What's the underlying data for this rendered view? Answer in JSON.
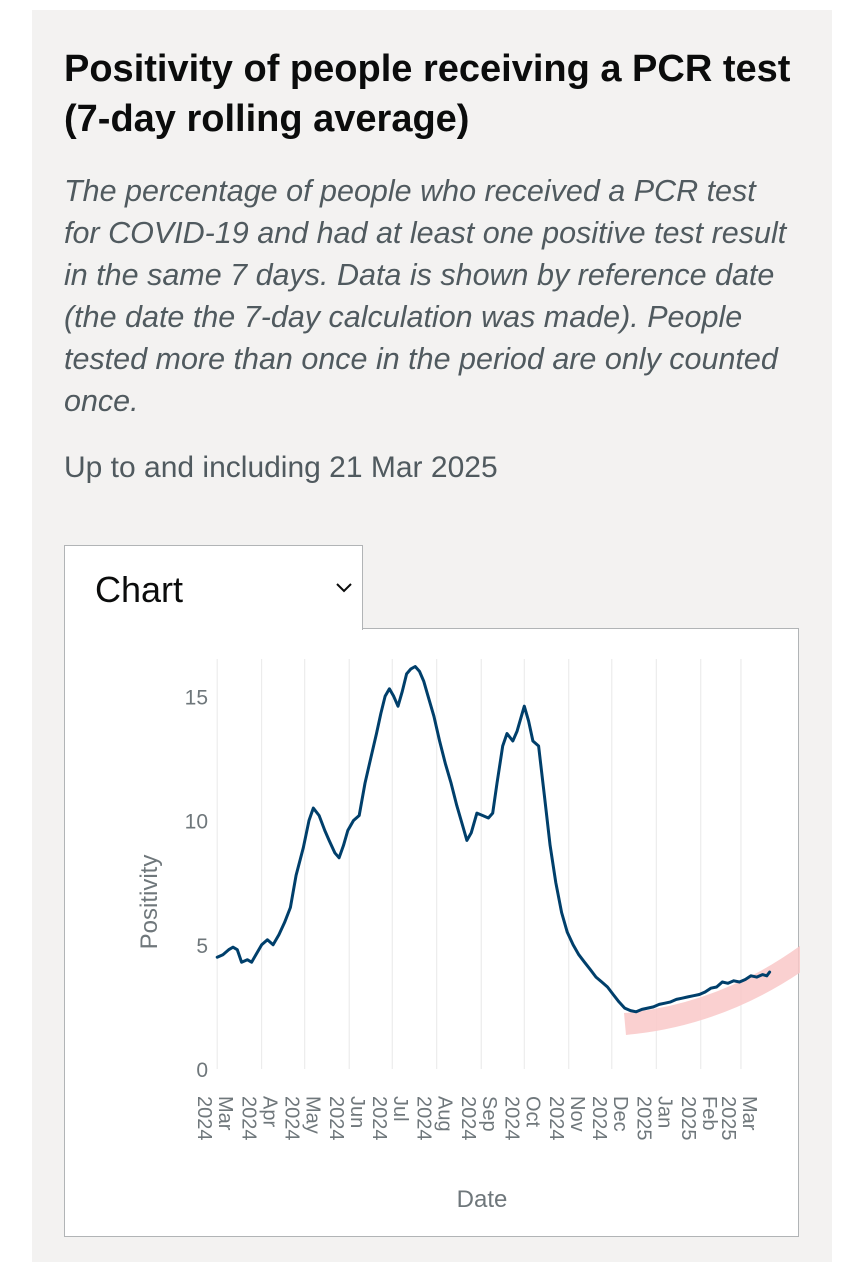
{
  "header": {
    "title": "Positivity of people receiving a PCR test (7-day rolling average)",
    "subtitle": "The percentage of people who received a PCR test for COVID-19 and had at least one positive test result in the same 7 days. Data is shown by reference date (the date the 7-day calculation was made). People tested more than once in the period are only counted once.",
    "date_note": "Up to and including 21 Mar 2025"
  },
  "view_selector": {
    "label": "Chart",
    "icon": "chevron-down-icon"
  },
  "colors": {
    "line": "#003f6b",
    "highlight": "#f9c8c8",
    "grid": "#e8e8e8",
    "axis_text": "#6f777b"
  },
  "chart_data": {
    "type": "line",
    "title": "",
    "xlabel": "Date",
    "ylabel": "Positivity",
    "ylim": [
      0,
      16.5
    ],
    "yticks": [
      0,
      5,
      10,
      15
    ],
    "xlim": [
      "2024-02-25",
      "2025-03-31"
    ],
    "grid": "vertical",
    "x_ticks": [
      {
        "date": "2024-03-01",
        "lines": [
          "Mar",
          "2024"
        ]
      },
      {
        "date": "2024-04-01",
        "lines": [
          "Apr",
          "2024"
        ]
      },
      {
        "date": "2024-05-01",
        "lines": [
          "May",
          "2024"
        ]
      },
      {
        "date": "2024-06-01",
        "lines": [
          "Jun",
          "2024"
        ]
      },
      {
        "date": "2024-07-01",
        "lines": [
          "Jul",
          "2024"
        ]
      },
      {
        "date": "2024-08-01",
        "lines": [
          "Aug",
          "2024"
        ]
      },
      {
        "date": "2024-09-01",
        "lines": [
          "Sep",
          "2024"
        ]
      },
      {
        "date": "2024-10-01",
        "lines": [
          "Oct",
          "2024"
        ]
      },
      {
        "date": "2024-11-01",
        "lines": [
          "Nov",
          "2024"
        ]
      },
      {
        "date": "2024-12-01",
        "lines": [
          "Dec",
          "2024"
        ]
      },
      {
        "date": "2025-01-01",
        "lines": [
          "Jan",
          "2025"
        ]
      },
      {
        "date": "2025-02-01",
        "lines": [
          "Feb",
          "2025"
        ]
      },
      {
        "date": "2025-03-01",
        "lines": [
          "Mar",
          "2025"
        ]
      }
    ],
    "series": [
      {
        "values": [
          [
            "2024-03-01",
            4.5
          ],
          [
            "2024-03-05",
            4.6
          ],
          [
            "2024-03-09",
            4.8
          ],
          [
            "2024-03-12",
            4.9
          ],
          [
            "2024-03-15",
            4.8
          ],
          [
            "2024-03-18",
            4.3
          ],
          [
            "2024-03-22",
            4.4
          ],
          [
            "2024-03-25",
            4.3
          ],
          [
            "2024-03-28",
            4.6
          ],
          [
            "2024-04-01",
            5.0
          ],
          [
            "2024-04-05",
            5.2
          ],
          [
            "2024-04-09",
            5.0
          ],
          [
            "2024-04-13",
            5.4
          ],
          [
            "2024-04-17",
            5.9
          ],
          [
            "2024-04-21",
            6.5
          ],
          [
            "2024-04-25",
            7.8
          ],
          [
            "2024-04-30",
            8.9
          ],
          [
            "2024-05-04",
            10.0
          ],
          [
            "2024-05-07",
            10.5
          ],
          [
            "2024-05-11",
            10.2
          ],
          [
            "2024-05-15",
            9.6
          ],
          [
            "2024-05-18",
            9.2
          ],
          [
            "2024-05-22",
            8.7
          ],
          [
            "2024-05-25",
            8.5
          ],
          [
            "2024-05-28",
            9.0
          ],
          [
            "2024-05-31",
            9.6
          ],
          [
            "2024-06-04",
            10.0
          ],
          [
            "2024-06-08",
            10.2
          ],
          [
            "2024-06-12",
            11.5
          ],
          [
            "2024-06-16",
            12.5
          ],
          [
            "2024-06-20",
            13.5
          ],
          [
            "2024-06-23",
            14.3
          ],
          [
            "2024-06-26",
            15.0
          ],
          [
            "2024-06-29",
            15.3
          ],
          [
            "2024-07-02",
            15.0
          ],
          [
            "2024-07-05",
            14.6
          ],
          [
            "2024-07-08",
            15.2
          ],
          [
            "2024-07-11",
            15.9
          ],
          [
            "2024-07-14",
            16.1
          ],
          [
            "2024-07-17",
            16.2
          ],
          [
            "2024-07-20",
            16.0
          ],
          [
            "2024-07-23",
            15.6
          ],
          [
            "2024-07-26",
            15.0
          ],
          [
            "2024-07-30",
            14.2
          ],
          [
            "2024-08-03",
            13.2
          ],
          [
            "2024-08-07",
            12.3
          ],
          [
            "2024-08-11",
            11.5
          ],
          [
            "2024-08-15",
            10.6
          ],
          [
            "2024-08-19",
            9.8
          ],
          [
            "2024-08-22",
            9.2
          ],
          [
            "2024-08-25",
            9.5
          ],
          [
            "2024-08-29",
            10.3
          ],
          [
            "2024-09-02",
            10.2
          ],
          [
            "2024-09-06",
            10.1
          ],
          [
            "2024-09-09",
            10.3
          ],
          [
            "2024-09-12",
            11.5
          ],
          [
            "2024-09-16",
            13.0
          ],
          [
            "2024-09-19",
            13.5
          ],
          [
            "2024-09-23",
            13.2
          ],
          [
            "2024-09-26",
            13.6
          ],
          [
            "2024-09-29",
            14.2
          ],
          [
            "2024-10-01",
            14.6
          ],
          [
            "2024-10-04",
            14.0
          ],
          [
            "2024-10-07",
            13.2
          ],
          [
            "2024-10-11",
            13.0
          ],
          [
            "2024-10-15",
            11.0
          ],
          [
            "2024-10-19",
            9.0
          ],
          [
            "2024-10-23",
            7.5
          ],
          [
            "2024-10-27",
            6.3
          ],
          [
            "2024-10-31",
            5.5
          ],
          [
            "2024-11-04",
            5.0
          ],
          [
            "2024-11-08",
            4.6
          ],
          [
            "2024-11-12",
            4.3
          ],
          [
            "2024-11-16",
            4.0
          ],
          [
            "2024-11-20",
            3.7
          ],
          [
            "2024-11-24",
            3.5
          ],
          [
            "2024-11-28",
            3.3
          ],
          [
            "2024-12-02",
            3.0
          ],
          [
            "2024-12-06",
            2.7
          ],
          [
            "2024-12-10",
            2.45
          ],
          [
            "2024-12-14",
            2.35
          ],
          [
            "2024-12-18",
            2.3
          ],
          [
            "2024-12-22",
            2.4
          ],
          [
            "2024-12-26",
            2.45
          ],
          [
            "2024-12-30",
            2.5
          ],
          [
            "2025-01-03",
            2.6
          ],
          [
            "2025-01-07",
            2.65
          ],
          [
            "2025-01-11",
            2.7
          ],
          [
            "2025-01-15",
            2.8
          ],
          [
            "2025-01-19",
            2.85
          ],
          [
            "2025-01-23",
            2.9
          ],
          [
            "2025-01-27",
            2.95
          ],
          [
            "2025-01-31",
            3.0
          ],
          [
            "2025-02-04",
            3.1
          ],
          [
            "2025-02-08",
            3.25
          ],
          [
            "2025-02-12",
            3.3
          ],
          [
            "2025-02-16",
            3.5
          ],
          [
            "2025-02-20",
            3.45
          ],
          [
            "2025-02-24",
            3.55
          ],
          [
            "2025-02-28",
            3.5
          ],
          [
            "2025-03-04",
            3.6
          ],
          [
            "2025-03-08",
            3.75
          ],
          [
            "2025-03-12",
            3.7
          ],
          [
            "2025-03-16",
            3.8
          ],
          [
            "2025-03-19",
            3.75
          ],
          [
            "2025-03-21",
            3.9
          ]
        ]
      }
    ]
  }
}
